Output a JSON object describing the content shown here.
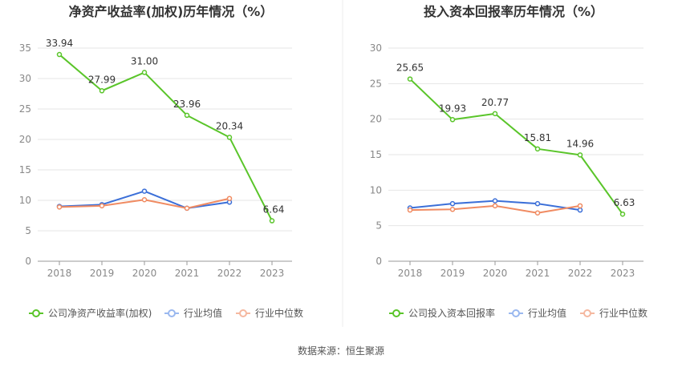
{
  "source_label": "数据来源：恒生聚源",
  "colors": {
    "company": "#5ac52a",
    "industry_avg": "#3b6fd8",
    "industry_median": "#f08b62",
    "grid": "#e6e6e6",
    "axis": "#999999",
    "legend_avg_icon": "#9ab8ef",
    "legend_median_icon": "#f5b8a0"
  },
  "chart_data": [
    {
      "type": "line",
      "title": "净资产收益率(加权)历年情况（%）",
      "xlabel": "",
      "ylabel": "",
      "categories": [
        "2018",
        "2019",
        "2020",
        "2021",
        "2022",
        "2023"
      ],
      "ylim": [
        0,
        35
      ],
      "yticks": [
        0,
        5,
        10,
        15,
        20,
        25,
        30,
        35
      ],
      "grid": true,
      "legend_position": "bottom",
      "series": [
        {
          "name": "公司净资产收益率(加权)",
          "values": [
            33.94,
            27.99,
            31.0,
            23.96,
            20.34,
            6.64
          ],
          "labels": [
            "33.94",
            "27.99",
            "31.00",
            "23.96",
            "20.34",
            "6.64"
          ],
          "color": "#5ac52a"
        },
        {
          "name": "行业均值",
          "values": [
            9.0,
            9.3,
            11.5,
            8.7,
            9.7,
            null
          ],
          "color": "#3b6fd8"
        },
        {
          "name": "行业中位数",
          "values": [
            8.9,
            9.1,
            10.1,
            8.7,
            10.3,
            null
          ],
          "color": "#f08b62"
        }
      ]
    },
    {
      "type": "line",
      "title": "投入资本回报率历年情况（%）",
      "xlabel": "",
      "ylabel": "",
      "categories": [
        "2018",
        "2019",
        "2020",
        "2021",
        "2022",
        "2023"
      ],
      "ylim": [
        0,
        30
      ],
      "yticks": [
        0,
        5,
        10,
        15,
        20,
        25,
        30
      ],
      "grid": true,
      "legend_position": "bottom",
      "series": [
        {
          "name": "公司投入资本回报率",
          "values": [
            25.65,
            19.93,
            20.77,
            15.81,
            14.96,
            6.63
          ],
          "labels": [
            "25.65",
            "19.93",
            "20.77",
            "15.81",
            "14.96",
            "6.63"
          ],
          "color": "#5ac52a"
        },
        {
          "name": "行业均值",
          "values": [
            7.5,
            8.1,
            8.5,
            8.1,
            7.2,
            null
          ],
          "color": "#3b6fd8"
        },
        {
          "name": "行业中位数",
          "values": [
            7.2,
            7.3,
            7.8,
            6.8,
            7.8,
            null
          ],
          "color": "#f08b62"
        }
      ]
    }
  ]
}
